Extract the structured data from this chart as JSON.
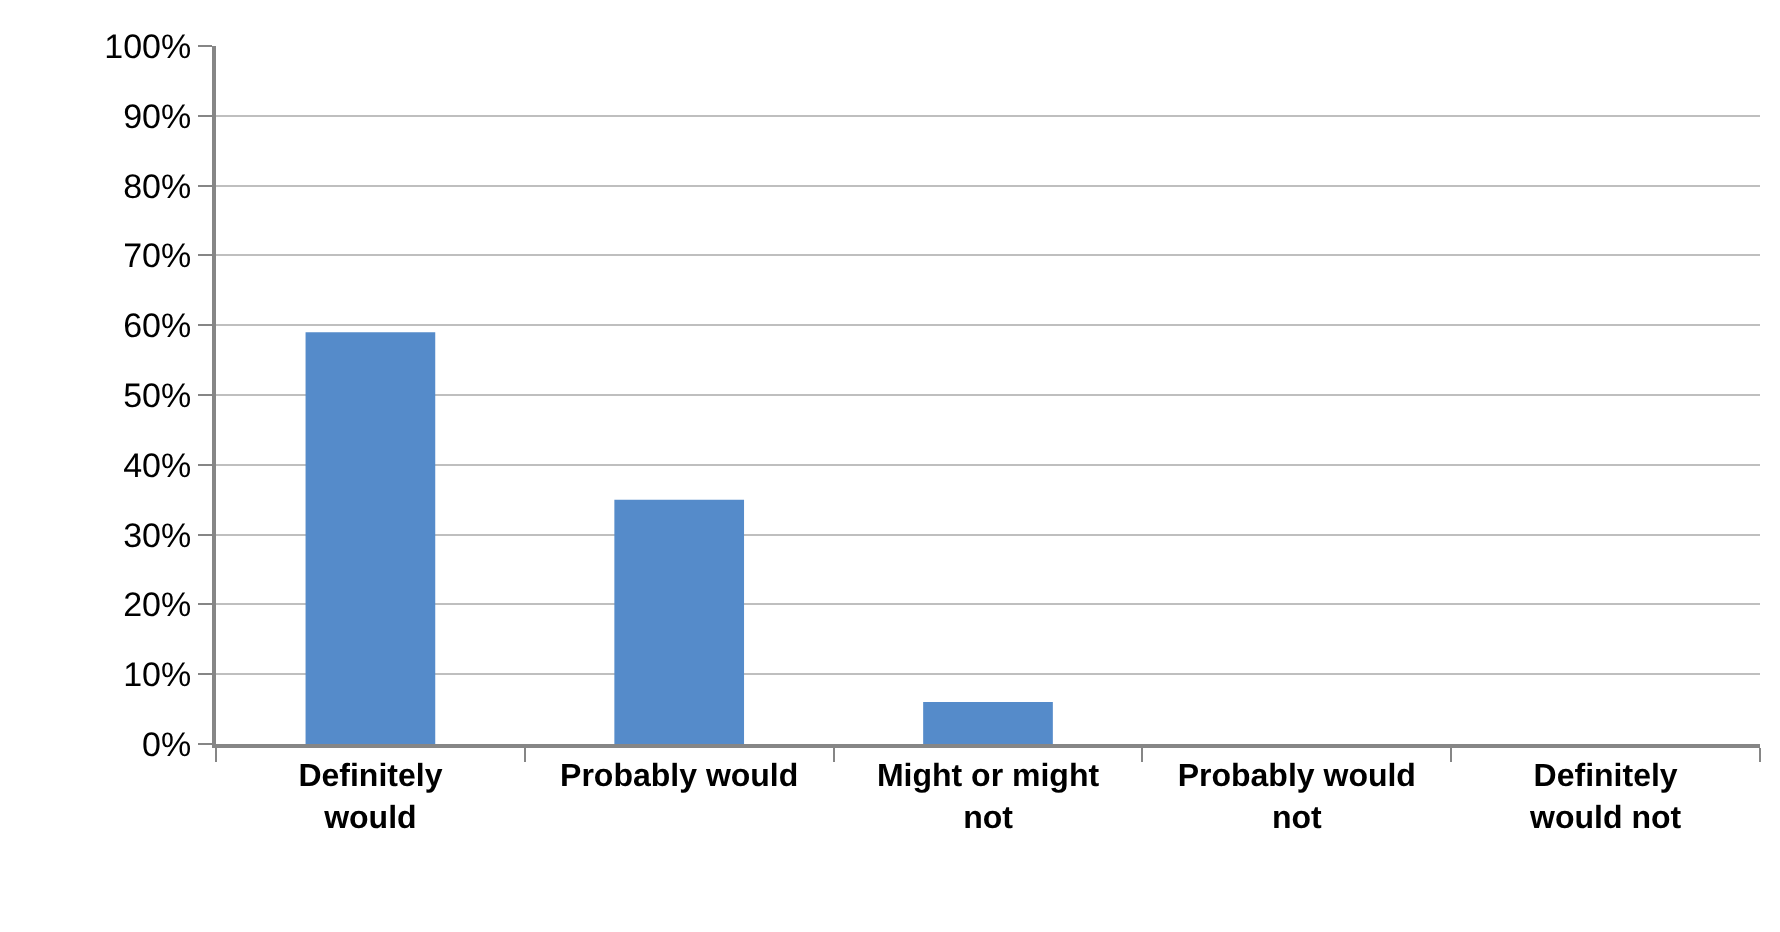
{
  "chart_data": {
    "type": "bar",
    "categories": [
      "Definitely would",
      "Probably would",
      "Might or might not",
      "Probably would not",
      "Definitely would not"
    ],
    "values": [
      59,
      35,
      6,
      0,
      0
    ],
    "color": "#558bca",
    "ylim": [
      0,
      100
    ],
    "yticks": [
      {
        "value": 0,
        "label": "0%"
      },
      {
        "value": 10,
        "label": "10%"
      },
      {
        "value": 20,
        "label": "20%"
      },
      {
        "value": 30,
        "label": "30%"
      },
      {
        "value": 40,
        "label": "40%"
      },
      {
        "value": 50,
        "label": "50%"
      },
      {
        "value": 60,
        "label": "60%"
      },
      {
        "value": 70,
        "label": "70%"
      },
      {
        "value": 80,
        "label": "80%"
      },
      {
        "value": 90,
        "label": "90%"
      },
      {
        "value": 100,
        "label": "100%"
      }
    ],
    "grid": "y"
  }
}
